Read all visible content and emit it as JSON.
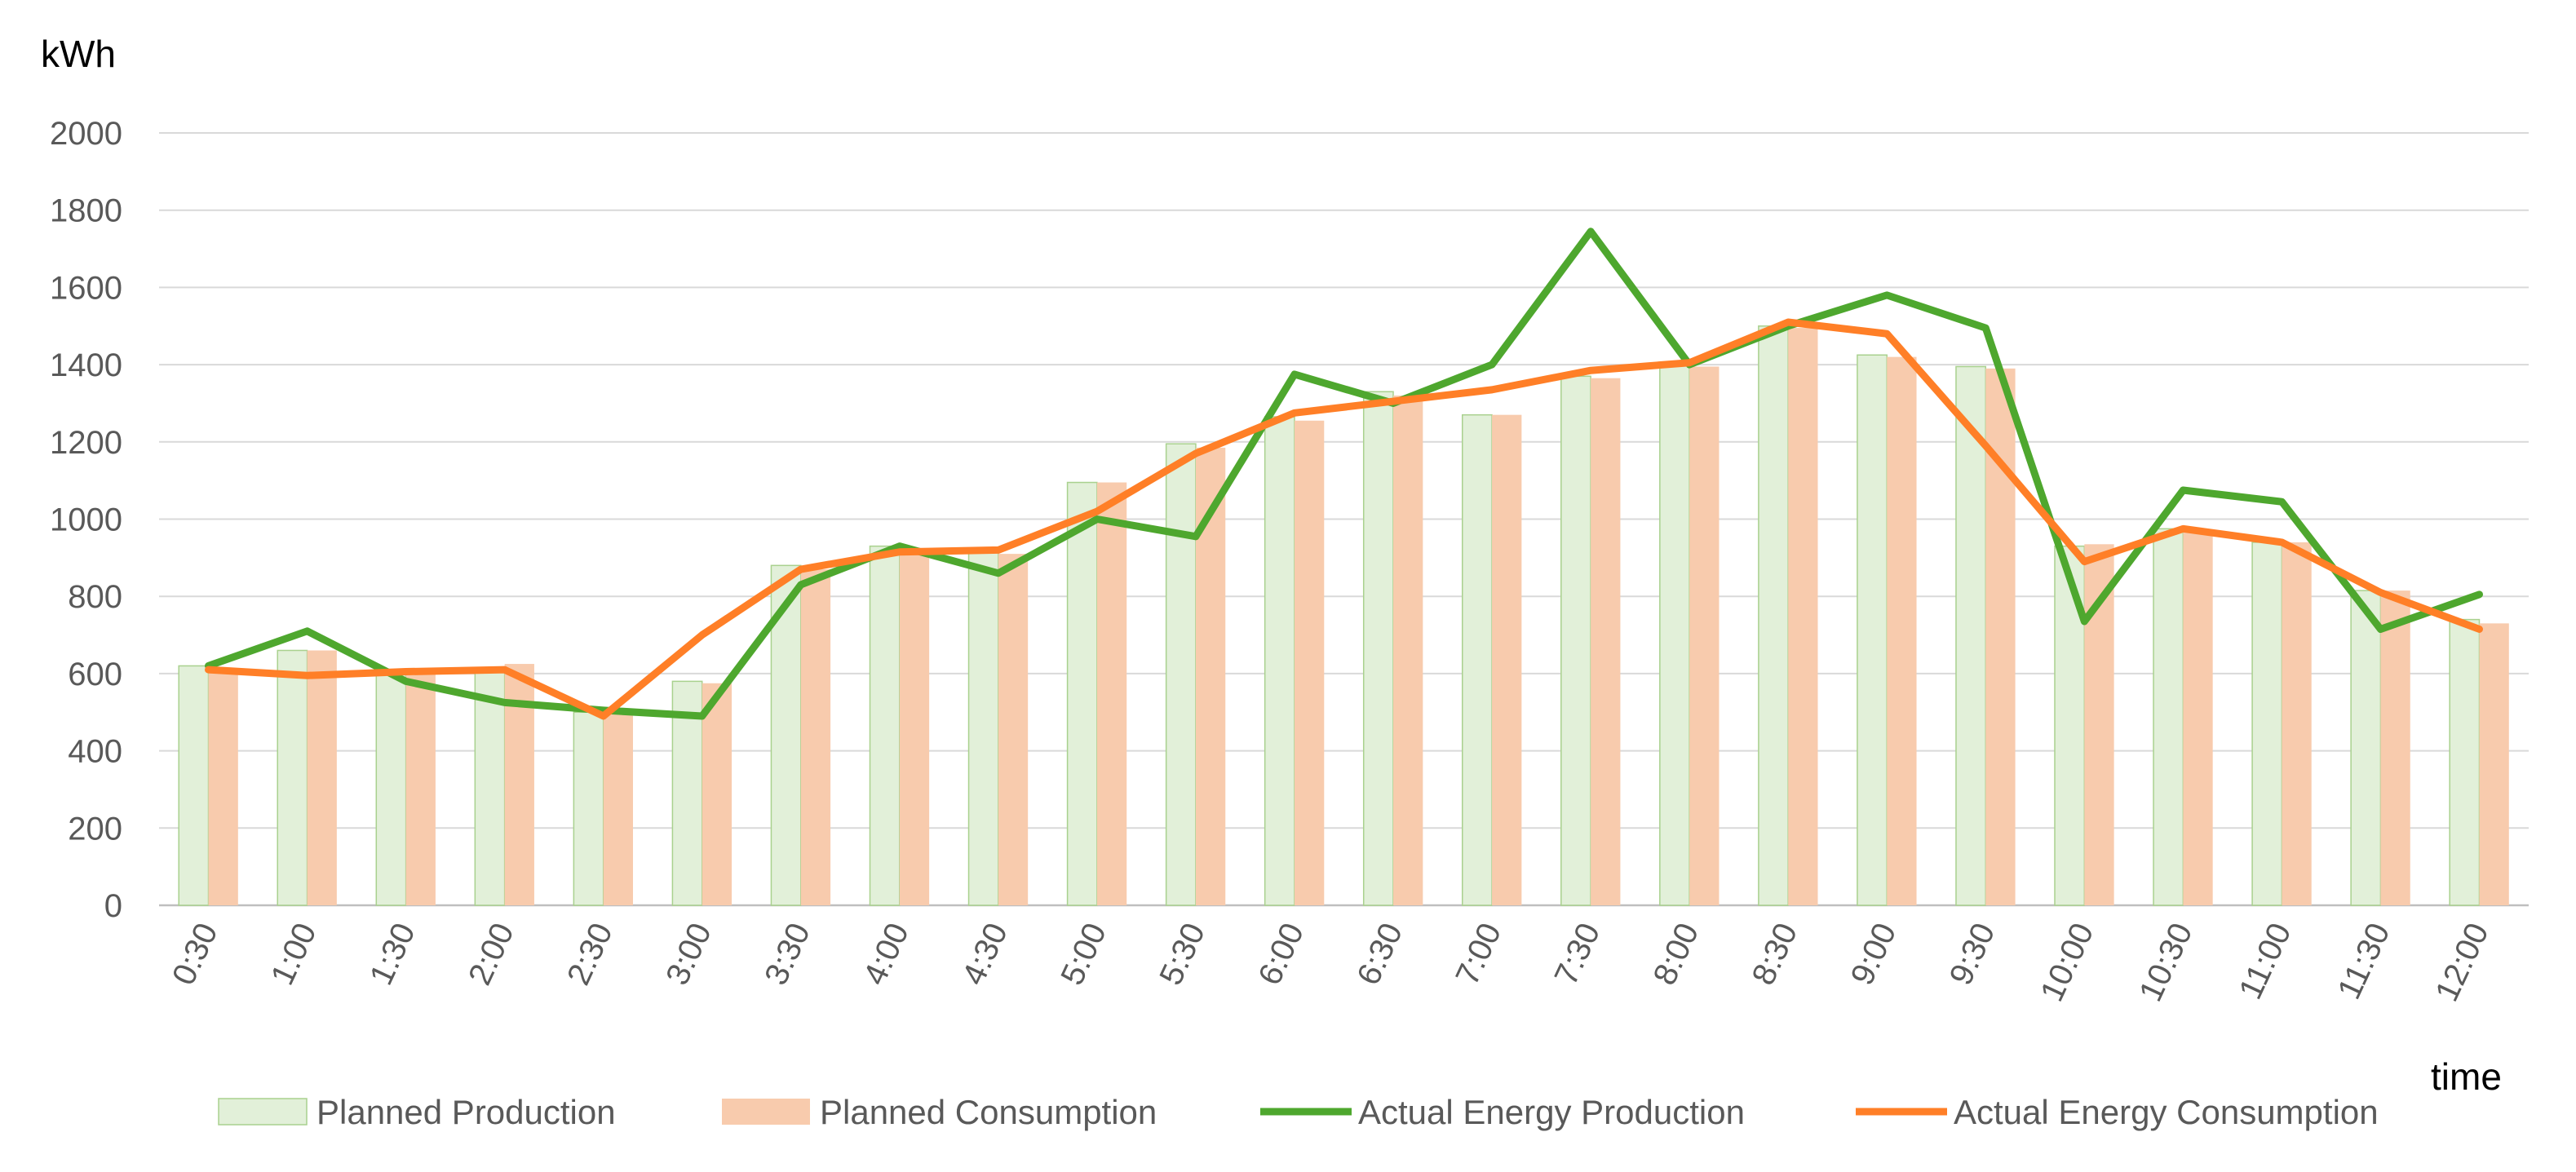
{
  "chart_data": {
    "type": "bar",
    "title": "",
    "ylabel": "kWh",
    "xlabel": "time",
    "ylim": [
      0,
      2000
    ],
    "yticks": [
      0,
      200,
      400,
      600,
      800,
      1000,
      1200,
      1400,
      1600,
      1800,
      2000
    ],
    "grid": true,
    "legend_position": "bottom",
    "categories": [
      "0:30",
      "1:00",
      "1:30",
      "2:00",
      "2:30",
      "3:00",
      "3:30",
      "4:00",
      "4:30",
      "5:00",
      "5:30",
      "6:00",
      "6:30",
      "7:00",
      "7:30",
      "8:00",
      "8:30",
      "9:00",
      "9:30",
      "10:00",
      "10:30",
      "11:00",
      "11:30",
      "12:00"
    ],
    "series": [
      {
        "name": "Planned Production",
        "kind": "bar",
        "color": "#e2f0d9",
        "stroke": "#a9d18e",
        "values": [
          620,
          660,
          610,
          610,
          500,
          580,
          880,
          930,
          920,
          1095,
          1195,
          1265,
          1330,
          1270,
          1370,
          1400,
          1500,
          1425,
          1395,
          930,
          975,
          940,
          815,
          740
        ]
      },
      {
        "name": "Planned Consumption",
        "kind": "bar",
        "color": "#f8cbad",
        "values": [
          605,
          660,
          600,
          625,
          500,
          575,
          870,
          925,
          910,
          1095,
          1185,
          1255,
          1320,
          1270,
          1365,
          1395,
          1495,
          1420,
          1390,
          935,
          970,
          940,
          815,
          730
        ]
      },
      {
        "name": "Actual Energy Production",
        "kind": "line",
        "color": "#4ea72e",
        "values": [
          620,
          710,
          580,
          525,
          505,
          490,
          830,
          930,
          860,
          1000,
          955,
          1375,
          1300,
          1400,
          1745,
          1400,
          1500,
          1580,
          1495,
          735,
          1075,
          1045,
          715,
          805
        ]
      },
      {
        "name": "Actual Energy Consumption",
        "kind": "line",
        "color": "#ff7f27",
        "values": [
          610,
          595,
          605,
          610,
          490,
          700,
          870,
          915,
          920,
          1020,
          1170,
          1275,
          1305,
          1335,
          1385,
          1405,
          1510,
          1480,
          1190,
          890,
          975,
          940,
          810,
          715
        ]
      }
    ]
  }
}
